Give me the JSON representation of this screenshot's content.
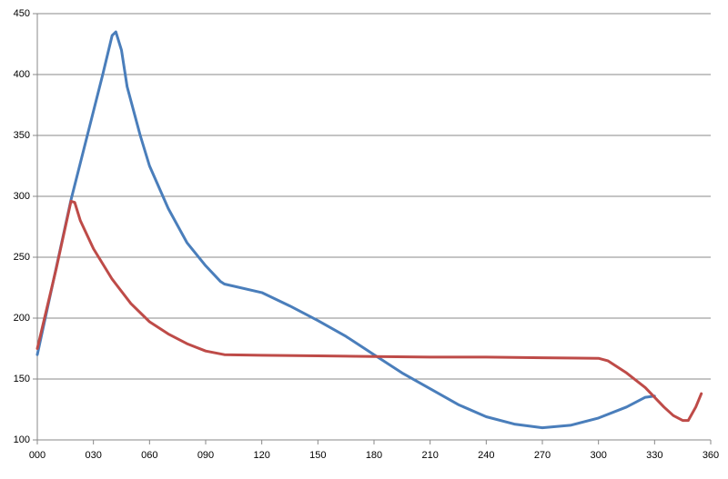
{
  "chart_data": {
    "type": "line",
    "xlim": [
      0,
      360
    ],
    "xticks": [
      {
        "value": 0,
        "label": "000"
      },
      {
        "value": 30,
        "label": "030"
      },
      {
        "value": 60,
        "label": "060"
      },
      {
        "value": 90,
        "label": "090"
      },
      120,
      150,
      180,
      210,
      240,
      270,
      300,
      330,
      360
    ],
    "ylim": [
      100,
      450
    ],
    "yticks": [
      100,
      150,
      200,
      250,
      300,
      350,
      400,
      450
    ],
    "grid": true,
    "series": [
      {
        "color": "#4a7ebb",
        "x": [
          0,
          18,
          35,
          40,
          42,
          45,
          48,
          55,
          60,
          70,
          80,
          90,
          98,
          100,
          120,
          135,
          150,
          165,
          180,
          195,
          210,
          225,
          240,
          255,
          270,
          285,
          300,
          315,
          325,
          330
        ],
        "values": [
          170,
          297,
          400,
          432,
          435,
          420,
          390,
          350,
          325,
          290,
          262,
          243,
          230,
          228,
          221,
          210,
          198,
          185,
          170,
          155,
          142,
          129,
          119,
          113,
          110,
          112,
          118,
          127,
          135,
          136
        ]
      },
      {
        "color": "#be4b48",
        "x": [
          0,
          10,
          18,
          20,
          23,
          30,
          40,
          50,
          60,
          70,
          80,
          90,
          100,
          120,
          150,
          180,
          210,
          240,
          270,
          300,
          305,
          315,
          325,
          335,
          340,
          345,
          348,
          352,
          355
        ],
        "values": [
          175,
          240,
          296,
          295,
          280,
          257,
          232,
          212,
          197,
          187,
          179,
          173,
          170,
          169.5,
          169,
          168.5,
          168,
          168,
          167.5,
          167,
          165,
          155,
          143,
          127,
          120,
          116,
          116,
          127,
          138
        ]
      }
    ]
  }
}
